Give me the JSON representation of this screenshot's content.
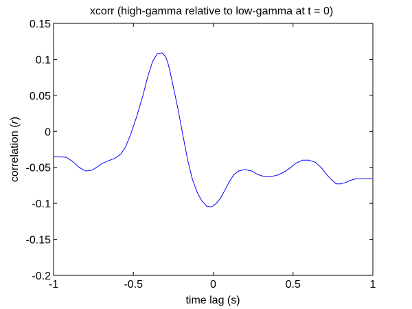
{
  "chart_data": {
    "type": "line",
    "title": "xcorr (high-gamma relative to low-gamma at t = 0)",
    "xlabel": "time lag (s)",
    "ylabel_prefix": "correlation (",
    "ylabel_var": "r",
    "ylabel_suffix": ")",
    "xlim": [
      -1,
      1
    ],
    "ylim": [
      -0.2,
      0.15
    ],
    "xticks": [
      -1,
      -0.5,
      0,
      0.5,
      1
    ],
    "xtick_labels": [
      "-1",
      "-0.5",
      "0",
      "0.5",
      "1"
    ],
    "yticks": [
      -0.2,
      -0.15,
      -0.1,
      -0.05,
      0,
      0.05,
      0.1,
      0.15
    ],
    "ytick_labels": [
      "-0.2",
      "-0.15",
      "-0.1",
      "-0.05",
      "0",
      "0.05",
      "0.1",
      "0.15"
    ],
    "grid": false,
    "series": [
      {
        "name": "xcorr",
        "color": "#0000ff",
        "x": [
          -1.0,
          -0.92,
          -0.88,
          -0.84,
          -0.8,
          -0.76,
          -0.73,
          -0.7,
          -0.66,
          -0.62,
          -0.58,
          -0.55,
          -0.52,
          -0.48,
          -0.44,
          -0.41,
          -0.38,
          -0.35,
          -0.32,
          -0.3,
          -0.285,
          -0.27,
          -0.25,
          -0.22,
          -0.19,
          -0.16,
          -0.13,
          -0.1,
          -0.07,
          -0.04,
          -0.01,
          0.02,
          0.045,
          0.07,
          0.1,
          0.13,
          0.16,
          0.2,
          0.24,
          0.28,
          0.32,
          0.36,
          0.4,
          0.44,
          0.48,
          0.52,
          0.56,
          0.6,
          0.64,
          0.68,
          0.71,
          0.74,
          0.77,
          0.8,
          0.83,
          0.86,
          0.89,
          0.92,
          0.95,
          0.98,
          1.0
        ],
        "y": [
          -0.035,
          -0.036,
          -0.042,
          -0.05,
          -0.055,
          -0.054,
          -0.05,
          -0.045,
          -0.041,
          -0.038,
          -0.032,
          -0.022,
          -0.006,
          0.02,
          0.05,
          0.076,
          0.097,
          0.108,
          0.109,
          0.104,
          0.096,
          0.083,
          0.062,
          0.03,
          -0.005,
          -0.04,
          -0.067,
          -0.085,
          -0.097,
          -0.104,
          -0.105,
          -0.1,
          -0.093,
          -0.083,
          -0.07,
          -0.06,
          -0.055,
          -0.053,
          -0.055,
          -0.06,
          -0.063,
          -0.063,
          -0.061,
          -0.057,
          -0.051,
          -0.044,
          -0.04,
          -0.04,
          -0.043,
          -0.051,
          -0.06,
          -0.067,
          -0.073,
          -0.073,
          -0.071,
          -0.068,
          -0.066,
          -0.066,
          -0.066,
          -0.066,
          -0.066
        ]
      }
    ]
  }
}
